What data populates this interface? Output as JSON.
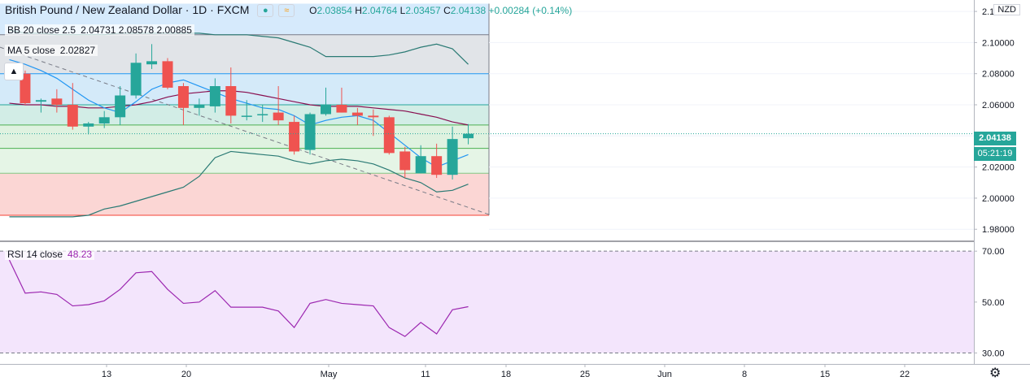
{
  "header": {
    "symbol": "British Pound / New Zealand Dollar",
    "interval": "1D",
    "exchange": "FXCM",
    "ohlc": {
      "open_label": "O",
      "open": "2.03854",
      "high_label": "H",
      "high": "2.04764",
      "low_label": "L",
      "low": "2.03457",
      "close_label": "C",
      "close": "2.04138",
      "change": "+0.00284 (+0.14%)"
    },
    "currency": "NZD"
  },
  "indicators": {
    "bb": {
      "label": "BB 20 close 2.5",
      "values": "2.04731  2.08578  2.00885"
    },
    "ma": {
      "label": "MA 5 close",
      "values": "2.02827"
    },
    "rsi": {
      "label": "RSI 14 close",
      "values": "48.23"
    }
  },
  "price_tag": {
    "price": "2.04138",
    "countdown": "05:21:19"
  },
  "colors": {
    "up": "#26a69a",
    "down": "#ef5350",
    "bb_mid": "#880e4f",
    "bb_band": "#2a7a74",
    "ma": "#2196f3",
    "rsi_line": "#9c27b0",
    "rsi_bg": "#f3e5fc"
  },
  "chart_data": [
    {
      "type": "candlestick",
      "title": "British Pound / New Zealand Dollar",
      "ylim": [
        1.975,
        2.125
      ],
      "y_ticks": [
        "1.98000",
        "2.00000",
        "2.02000",
        "2.04000",
        "2.06000",
        "2.08000",
        "2.10000",
        "2.12000"
      ],
      "x_ticks": [
        "13",
        "20",
        "May",
        "11",
        "18",
        "25",
        "Jun",
        "8",
        "15",
        "22"
      ],
      "fib_levels": [
        2.105,
        2.08,
        2.06,
        2.047,
        2.032,
        2.016,
        1.989
      ],
      "candles": [
        {
          "o": 2.084,
          "h": 2.087,
          "l": 2.08,
          "c": 2.081
        },
        {
          "o": 2.08,
          "h": 2.082,
          "l": 2.06,
          "c": 2.061
        },
        {
          "o": 2.062,
          "h": 2.064,
          "l": 2.055,
          "c": 2.063
        },
        {
          "o": 2.064,
          "h": 2.07,
          "l": 2.055,
          "c": 2.06
        },
        {
          "o": 2.06,
          "h": 2.074,
          "l": 2.044,
          "c": 2.046
        },
        {
          "o": 2.046,
          "h": 2.049,
          "l": 2.041,
          "c": 2.048
        },
        {
          "o": 2.048,
          "h": 2.056,
          "l": 2.045,
          "c": 2.052
        },
        {
          "o": 2.052,
          "h": 2.072,
          "l": 2.047,
          "c": 2.066
        },
        {
          "o": 2.066,
          "h": 2.093,
          "l": 2.064,
          "c": 2.087
        },
        {
          "o": 2.086,
          "h": 2.099,
          "l": 2.083,
          "c": 2.088
        },
        {
          "o": 2.088,
          "h": 2.09,
          "l": 2.07,
          "c": 2.071
        },
        {
          "o": 2.072,
          "h": 2.074,
          "l": 2.047,
          "c": 2.058
        },
        {
          "o": 2.058,
          "h": 2.064,
          "l": 2.053,
          "c": 2.06
        },
        {
          "o": 2.059,
          "h": 2.077,
          "l": 2.055,
          "c": 2.072
        },
        {
          "o": 2.072,
          "h": 2.084,
          "l": 2.048,
          "c": 2.053
        },
        {
          "o": 2.053,
          "h": 2.063,
          "l": 2.05,
          "c": 2.053
        },
        {
          "o": 2.054,
          "h": 2.06,
          "l": 2.049,
          "c": 2.054
        },
        {
          "o": 2.055,
          "h": 2.072,
          "l": 2.047,
          "c": 2.05
        },
        {
          "o": 2.049,
          "h": 2.053,
          "l": 2.028,
          "c": 2.03
        },
        {
          "o": 2.031,
          "h": 2.055,
          "l": 2.028,
          "c": 2.054
        },
        {
          "o": 2.054,
          "h": 2.071,
          "l": 2.053,
          "c": 2.06
        },
        {
          "o": 2.06,
          "h": 2.071,
          "l": 2.055,
          "c": 2.055
        },
        {
          "o": 2.055,
          "h": 2.058,
          "l": 2.047,
          "c": 2.053
        },
        {
          "o": 2.053,
          "h": 2.057,
          "l": 2.04,
          "c": 2.052
        },
        {
          "o": 2.052,
          "h": 2.053,
          "l": 2.028,
          "c": 2.029
        },
        {
          "o": 2.03,
          "h": 2.033,
          "l": 2.013,
          "c": 2.018
        },
        {
          "o": 2.016,
          "h": 2.034,
          "l": 2.016,
          "c": 2.027
        },
        {
          "o": 2.027,
          "h": 2.035,
          "l": 2.013,
          "c": 2.015
        },
        {
          "o": 2.015,
          "h": 2.046,
          "l": 2.012,
          "c": 2.038
        },
        {
          "o": 2.0385,
          "h": 2.0476,
          "l": 2.0346,
          "c": 2.0414
        }
      ],
      "bb_middle": [
        2.061,
        2.06,
        2.06,
        2.059,
        2.059,
        2.058,
        2.058,
        2.059,
        2.06,
        2.062,
        2.065,
        2.067,
        2.068,
        2.069,
        2.069,
        2.068,
        2.066,
        2.064,
        2.062,
        2.06,
        2.059,
        2.059,
        2.059,
        2.058,
        2.057,
        2.056,
        2.054,
        2.052,
        2.049,
        2.047
      ],
      "bb_upper": [
        2.108,
        2.106,
        2.106,
        2.105,
        2.105,
        2.105,
        2.105,
        2.106,
        2.106,
        2.106,
        2.106,
        2.106,
        2.106,
        2.105,
        2.105,
        2.105,
        2.104,
        2.103,
        2.1,
        2.097,
        2.091,
        2.091,
        2.091,
        2.091,
        2.092,
        2.094,
        2.097,
        2.099,
        2.096,
        2.086
      ],
      "bb_lower": [
        1.988,
        1.988,
        1.988,
        1.988,
        1.988,
        1.989,
        1.993,
        1.995,
        1.998,
        2.001,
        2.004,
        2.007,
        2.014,
        2.026,
        2.03,
        2.029,
        2.028,
        2.027,
        2.024,
        2.022,
        2.024,
        2.025,
        2.024,
        2.022,
        2.018,
        2.013,
        2.01,
        2.004,
        2.005,
        2.009
      ],
      "ma": [
        2.089,
        2.086,
        2.082,
        2.077,
        2.07,
        2.063,
        2.058,
        2.055,
        2.062,
        2.07,
        2.074,
        2.076,
        2.072,
        2.068,
        2.064,
        2.061,
        2.058,
        2.057,
        2.053,
        2.047,
        2.05,
        2.052,
        2.053,
        2.05,
        2.042,
        2.034,
        2.026,
        2.02,
        2.024,
        2.028
      ]
    },
    {
      "type": "line",
      "title": "RSI 14 close",
      "ylim": [
        25,
        75
      ],
      "y_ticks": [
        "30.00",
        "50.00",
        "70.00"
      ],
      "band": [
        30,
        70
      ],
      "values": [
        66.5,
        53.5,
        54.0,
        53.0,
        48.5,
        49.0,
        50.5,
        55.0,
        61.5,
        62.0,
        55.0,
        49.5,
        50.0,
        54.5,
        48.0,
        48.0,
        48.0,
        46.5,
        40.0,
        49.5,
        51.0,
        49.5,
        49.0,
        48.5,
        40.0,
        36.5,
        42.0,
        37.5,
        47.0,
        48.2
      ]
    }
  ]
}
